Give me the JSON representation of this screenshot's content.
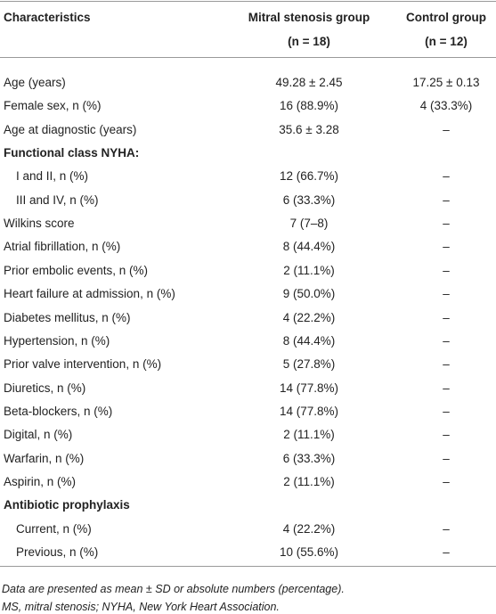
{
  "header": {
    "columns": [
      "Characteristics",
      "Mitral stenosis group",
      "Control group"
    ],
    "subtitles": [
      "(n = 18)",
      "(n = 12)"
    ]
  },
  "rows": [
    {
      "cells": [
        "Age (years)",
        "49.28 ± 2.45",
        "17.25 ± 0.13"
      ]
    },
    {
      "cells": [
        "Female sex, n (%)",
        "16 (88.9%)",
        "4 (33.3%)"
      ]
    },
    {
      "cells": [
        "Age at diagnostic (years)",
        "35.6 ± 3.28",
        "–"
      ]
    },
    {
      "cells": [
        "Functional class NYHA:"
      ]
    },
    {
      "cells": [
        "I and II, n (%)",
        "12 (66.7%)",
        "–"
      ],
      "indent": true
    },
    {
      "cells": [
        "III and IV, n (%)",
        "6 (33.3%)",
        "–"
      ],
      "indent": true
    },
    {
      "cells": [
        "Wilkins score",
        "7 (7–8)",
        "–"
      ]
    },
    {
      "cells": [
        "Atrial fibrillation, n (%)",
        "8 (44.4%)",
        "–"
      ]
    },
    {
      "cells": [
        "Prior embolic events, n (%)",
        "2 (11.1%)",
        "–"
      ]
    },
    {
      "cells": [
        "Heart failure at admission, n (%)",
        "9 (50.0%)",
        "–"
      ]
    },
    {
      "cells": [
        "Diabetes mellitus, n (%)",
        "4 (22.2%)",
        "–"
      ]
    },
    {
      "cells": [
        "Hypertension, n (%)",
        "8 (44.4%)",
        "–"
      ]
    },
    {
      "cells": [
        "Prior valve intervention, n (%)",
        "5 (27.8%)",
        "–"
      ]
    },
    {
      "cells": [
        "Diuretics, n (%)",
        "14 (77.8%)",
        "–"
      ]
    },
    {
      "cells": [
        "Beta-blockers, n (%)",
        "14 (77.8%)",
        "–"
      ]
    },
    {
      "cells": [
        "Digital, n (%)",
        "2 (11.1%)",
        "–"
      ]
    },
    {
      "cells": [
        "Warfarin, n (%)",
        "6 (33.3%)",
        "–"
      ]
    },
    {
      "cells": [
        "Aspirin, n (%)",
        "2 (11.1%)",
        "–"
      ]
    },
    {
      "cells": [
        "Antibiotic prophylaxis"
      ]
    },
    {
      "cells": [
        "Current, n (%)",
        "4 (22.2%)",
        "–"
      ],
      "indent": true
    },
    {
      "cells": [
        "Previous, n (%)",
        "10 (55.6%)",
        "–"
      ],
      "indent": true
    }
  ],
  "footnotes": [
    "Data are presented as mean ± SD or absolute numbers (percentage).",
    "MS, mitral stenosis; NYHA, New York Heart Association."
  ]
}
